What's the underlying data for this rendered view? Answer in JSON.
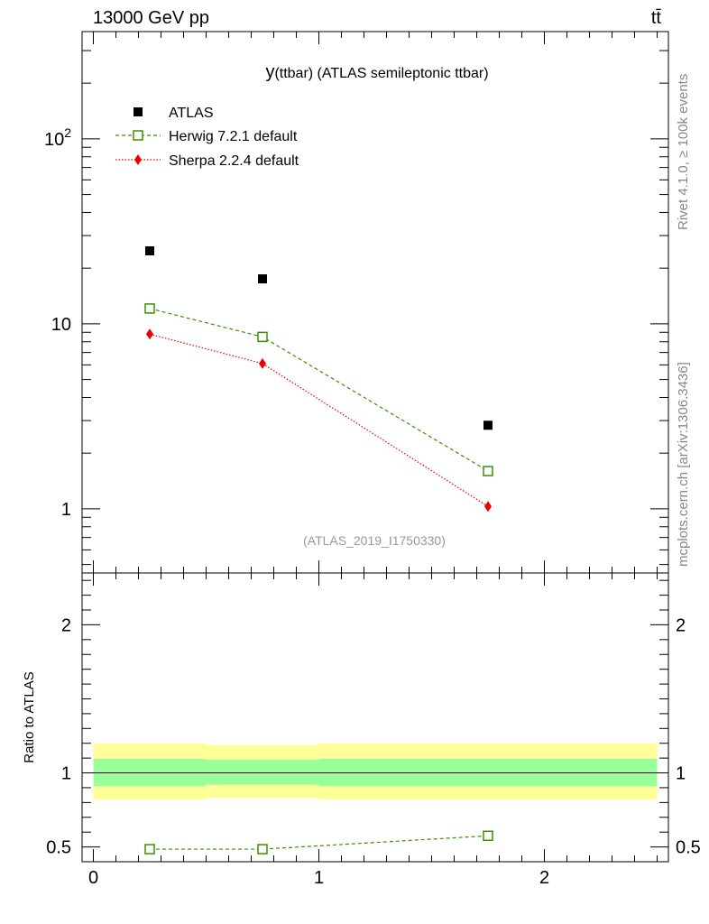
{
  "header": {
    "energy_label": "13000 GeV pp",
    "process_label": "tt̄"
  },
  "side_labels": {
    "rivet": "Rivet 4.1.0, ≥ 100k events",
    "source": "mcplots.cern.ch [arXiv:1306.3436]"
  },
  "chart_data": [
    {
      "type": "scatter",
      "panel": "main",
      "title": "y(ttbar) (ATLAS semileptonic ttbar)",
      "title_main": "y",
      "title_rest": "(ttbar) (ATLAS semileptonic ttbar)",
      "analysis_label": "(ATLAS_2019_I1750330)",
      "yscale": "log",
      "xlim": [
        -0.05,
        2.55
      ],
      "ylim": [
        0.45,
        380
      ],
      "ytick_labels": [
        {
          "value": 1,
          "label": "1"
        },
        {
          "value": 10,
          "label": "10"
        },
        {
          "value": 100,
          "label": "10",
          "sup": "2"
        }
      ],
      "legend_position": "top-left",
      "series": [
        {
          "name": "ATLAS",
          "marker": "square-filled",
          "color": "#000000",
          "x": [
            0.25,
            0.75,
            1.75
          ],
          "values": [
            24.8,
            17.5,
            2.83
          ]
        },
        {
          "name": "Herwig 7.2.1 default",
          "marker": "square-open",
          "line": "dashed",
          "color": "#3a8f00",
          "x": [
            0.25,
            0.75,
            1.75
          ],
          "values": [
            12.1,
            8.5,
            1.6
          ]
        },
        {
          "name": "Sherpa 2.2.4 default",
          "marker": "diamond-filled",
          "line": "dotted",
          "color": "#ee0000",
          "x": [
            0.25,
            0.75,
            1.75
          ],
          "values": [
            8.8,
            6.1,
            1.03
          ]
        }
      ]
    },
    {
      "type": "scatter",
      "panel": "ratio",
      "ylabel": "Ratio to ATLAS",
      "xlim": [
        -0.05,
        2.55
      ],
      "ylim": [
        0.4,
        2.35
      ],
      "xtick_labels": [
        {
          "value": 0,
          "label": "0"
        },
        {
          "value": 1,
          "label": "1"
        },
        {
          "value": 2,
          "label": "2"
        }
      ],
      "ytick_labels": [
        {
          "value": 0.5,
          "label": "0.5"
        },
        {
          "value": 1,
          "label": "1"
        },
        {
          "value": 2,
          "label": "2"
        }
      ],
      "bands": [
        {
          "x": [
            0.0,
            0.5
          ],
          "inner": [
            0.91,
            1.095
          ],
          "outer": [
            0.82,
            1.2
          ]
        },
        {
          "x": [
            0.5,
            1.0
          ],
          "inner": [
            0.92,
            1.09
          ],
          "outer": [
            0.83,
            1.19
          ]
        },
        {
          "x": [
            1.0,
            2.5
          ],
          "inner": [
            0.91,
            1.095
          ],
          "outer": [
            0.82,
            1.2
          ]
        }
      ],
      "band_colors": {
        "inner": "#99ff99",
        "outer": "#ffff99"
      },
      "series": [
        {
          "name": "Herwig 7.2.1 default",
          "marker": "square-open",
          "line": "dashed",
          "color": "#3a8f00",
          "x": [
            0.25,
            0.75,
            1.75
          ],
          "values": [
            0.485,
            0.485,
            0.575
          ],
          "errors": [
            0.0,
            0.0,
            0.02
          ]
        }
      ]
    }
  ]
}
